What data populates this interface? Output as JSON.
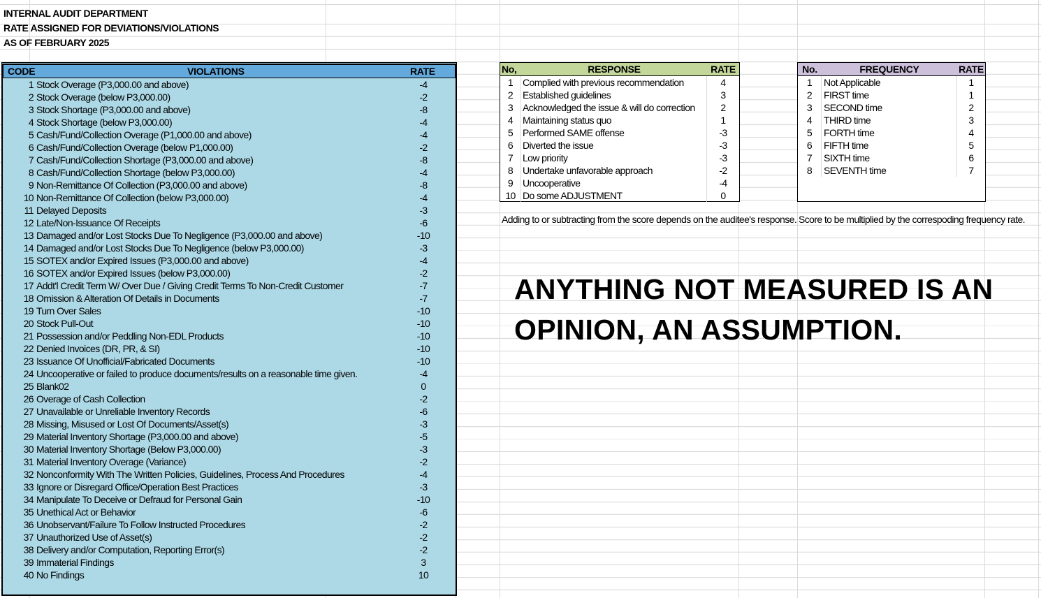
{
  "header": {
    "line1": "INTERNAL AUDIT DEPARTMENT",
    "line2": "RATE ASSIGNED FOR DEVIATIONS/VIOLATIONS",
    "line3": "AS OF FEBRUARY 2025"
  },
  "violations": {
    "headers": {
      "code": "CODE",
      "violation": "VIOLATIONS",
      "rate": "RATE"
    },
    "colors": {
      "header": "#63a9dc",
      "body": "#add8e6"
    },
    "rows": [
      {
        "code": "1",
        "name": "Stock Overage (P3,000.00 and above)",
        "rate": "-4"
      },
      {
        "code": "2",
        "name": "Stock Overage (below P3,000.00)",
        "rate": "-2"
      },
      {
        "code": "3",
        "name": "Stock Shortage (P3,000.00 and above)",
        "rate": "-8"
      },
      {
        "code": "4",
        "name": "Stock Shortage (below P3,000.00)",
        "rate": "-4"
      },
      {
        "code": "5",
        "name": "Cash/Fund/Collection Overage (P1,000.00 and above)",
        "rate": "-4"
      },
      {
        "code": "6",
        "name": "Cash/Fund/Collection Overage (below P1,000.00)",
        "rate": "-2"
      },
      {
        "code": "7",
        "name": "Cash/Fund/Collection Shortage (P3,000.00 and above)",
        "rate": "-8"
      },
      {
        "code": "8",
        "name": "Cash/Fund/Collection Shortage (below P3,000.00)",
        "rate": "-4"
      },
      {
        "code": "9",
        "name": "Non-Remittance Of Collection (P3,000.00 and above)",
        "rate": "-8"
      },
      {
        "code": "10",
        "name": "Non-Remittance Of Collection (below P3,000.00)",
        "rate": "-4"
      },
      {
        "code": "11",
        "name": "Delayed Deposits",
        "rate": "-3"
      },
      {
        "code": "12",
        "name": "Late/Non-Issuance Of Receipts",
        "rate": "-6"
      },
      {
        "code": "13",
        "name": "Damaged and/or Lost Stocks Due To Negligence (P3,000.00 and above)",
        "rate": "-10"
      },
      {
        "code": "14",
        "name": "Damaged and/or Lost Stocks Due To Negligence (below P3,000.00)",
        "rate": "-3"
      },
      {
        "code": "15",
        "name": "SOTEX and/or Expired Issues (P3,000.00 and above)",
        "rate": "-4"
      },
      {
        "code": "16",
        "name": "SOTEX and/or Expired Issues (below P3,000.00)",
        "rate": "-2"
      },
      {
        "code": "17",
        "name": "Addt'l Credit Term W/ Over Due / Giving Credit Terms To Non-Credit Customer",
        "rate": "-7"
      },
      {
        "code": "18",
        "name": "Omission & Alteration Of Details in Documents",
        "rate": "-7"
      },
      {
        "code": "19",
        "name": "Turn Over Sales",
        "rate": "-10"
      },
      {
        "code": "20",
        "name": "Stock Pull-Out",
        "rate": "-10"
      },
      {
        "code": "21",
        "name": "Possession and/or Peddling Non-EDL Products",
        "rate": "-10"
      },
      {
        "code": "22",
        "name": "Denied Invoices (DR, PR, & SI)",
        "rate": "-10"
      },
      {
        "code": "23",
        "name": "Issuance Of Unofficial/Fabricated Documents",
        "rate": "-10"
      },
      {
        "code": "24",
        "name": "Uncooperative or failed to produce documents/results on a reasonable time given.",
        "rate": "-4"
      },
      {
        "code": "25",
        "name": "Blank02",
        "rate": "0"
      },
      {
        "code": "26",
        "name": "Overage of Cash Collection",
        "rate": "-2"
      },
      {
        "code": "27",
        "name": "Unavailable or Unreliable Inventory Records",
        "rate": "-6"
      },
      {
        "code": "28",
        "name": "Missing, Misused or Lost Of Documents/Asset(s)",
        "rate": "-3"
      },
      {
        "code": "29",
        "name": "Material Inventory Shortage (P3,000.00 and above)",
        "rate": "-5"
      },
      {
        "code": "30",
        "name": "Material Inventory Shortage (Below P3,000.00)",
        "rate": "-3"
      },
      {
        "code": "31",
        "name": "Material Inventory Overage (Variance)",
        "rate": "-2"
      },
      {
        "code": "32",
        "name": "Nonconformity With The Written Policies, Guidelines, Process And Procedures",
        "rate": "-4"
      },
      {
        "code": "33",
        "name": "Ignore or Disregard Office/Operation Best Practices",
        "rate": "-3"
      },
      {
        "code": "34",
        "name": "Manipulate To Deceive or Defraud for Personal Gain",
        "rate": "-10"
      },
      {
        "code": "35",
        "name": "Unethical Act or Behavior",
        "rate": "-6"
      },
      {
        "code": "36",
        "name": "Unobservant/Failure To Follow Instructed Procedures",
        "rate": "-2"
      },
      {
        "code": "37",
        "name": "Unauthorized Use of Asset(s)",
        "rate": "-2"
      },
      {
        "code": "38",
        "name": "Delivery and/or Computation, Reporting Error(s)",
        "rate": "-2"
      },
      {
        "code": "39",
        "name": "Immaterial Findings",
        "rate": "3"
      },
      {
        "code": "40",
        "name": "No Findings",
        "rate": "10"
      }
    ]
  },
  "response": {
    "headers": {
      "no": "No,",
      "name": "RESPONSE",
      "rate": "RATE"
    },
    "color": "#c4d79b",
    "rows": [
      {
        "no": "1",
        "name": "Complied with previous recommendation",
        "rate": "4"
      },
      {
        "no": "2",
        "name": "Established guidelines",
        "rate": "3"
      },
      {
        "no": "3",
        "name": "Acknowledged the issue & will do correction",
        "rate": "2"
      },
      {
        "no": "4",
        "name": "Maintaining status quo",
        "rate": "1"
      },
      {
        "no": "5",
        "name": "Performed SAME offense",
        "rate": "-3"
      },
      {
        "no": "6",
        "name": "Diverted the issue",
        "rate": "-3"
      },
      {
        "no": "7",
        "name": "Low priority",
        "rate": "-3"
      },
      {
        "no": "8",
        "name": "Undertake unfavorable approach",
        "rate": "-2"
      },
      {
        "no": "9",
        "name": "Uncooperative",
        "rate": "-4"
      },
      {
        "no": "10",
        "name": "Do some ADJUSTMENT",
        "rate": "0"
      }
    ],
    "note": "Adding to  or subtracting from the score depends on the auditee's response."
  },
  "frequency": {
    "headers": {
      "no": "No.",
      "name": "FREQUENCY",
      "rate": "RATE"
    },
    "color": "#ccc0da",
    "rows": [
      {
        "no": "1",
        "name": "Not Applicable",
        "rate": "1"
      },
      {
        "no": "2",
        "name": "FIRST time",
        "rate": "1"
      },
      {
        "no": "3",
        "name": "SECOND time",
        "rate": "2"
      },
      {
        "no": "4",
        "name": "THIRD time",
        "rate": "3"
      },
      {
        "no": "5",
        "name": "FORTH time",
        "rate": "4"
      },
      {
        "no": "6",
        "name": "FIFTH time",
        "rate": "5"
      },
      {
        "no": "7",
        "name": "SIXTH time",
        "rate": "6"
      },
      {
        "no": "8",
        "name": "SEVENTH time",
        "rate": "7"
      }
    ],
    "note": "Score to be multiplied by the correspoding frequency rate."
  },
  "quote": {
    "line1": "ANYTHING NOT MEASURED IS AN",
    "line2": "OPINION, AN ASSUMPTION."
  }
}
